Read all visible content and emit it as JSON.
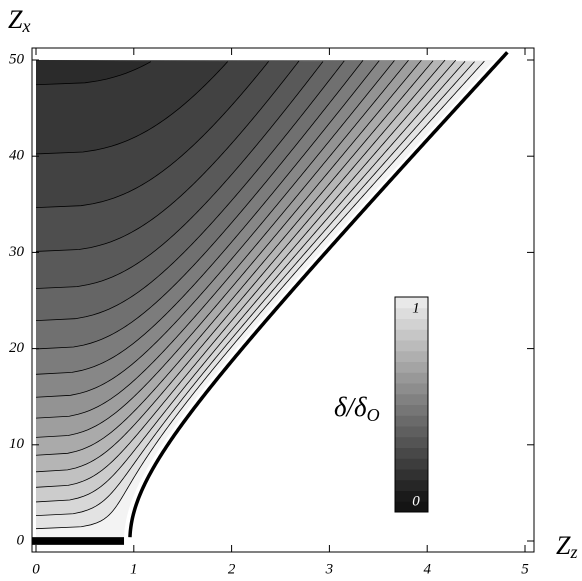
{
  "chart_data": {
    "type": "contour",
    "x_label": {
      "text": "Z",
      "sub": "z"
    },
    "y_label": {
      "text": "Z",
      "sub": "x"
    },
    "xlim": [
      0,
      5
    ],
    "xticks": [
      0,
      1,
      2,
      3,
      4,
      5
    ],
    "ylim": [
      0,
      50
    ],
    "yticks": [
      0,
      10,
      20,
      30,
      40,
      50
    ],
    "levels": [
      0.05,
      0.1,
      0.15,
      0.2,
      0.25,
      0.3,
      0.35,
      0.4,
      0.45,
      0.5,
      0.55,
      0.6,
      0.65,
      0.7,
      0.75,
      0.8,
      0.85,
      0.9,
      0.95
    ],
    "colorbar": {
      "label": {
        "text": "δ/δ",
        "sub": "O"
      },
      "lim": [
        0,
        1
      ],
      "ticks": [
        0,
        1
      ]
    }
  }
}
